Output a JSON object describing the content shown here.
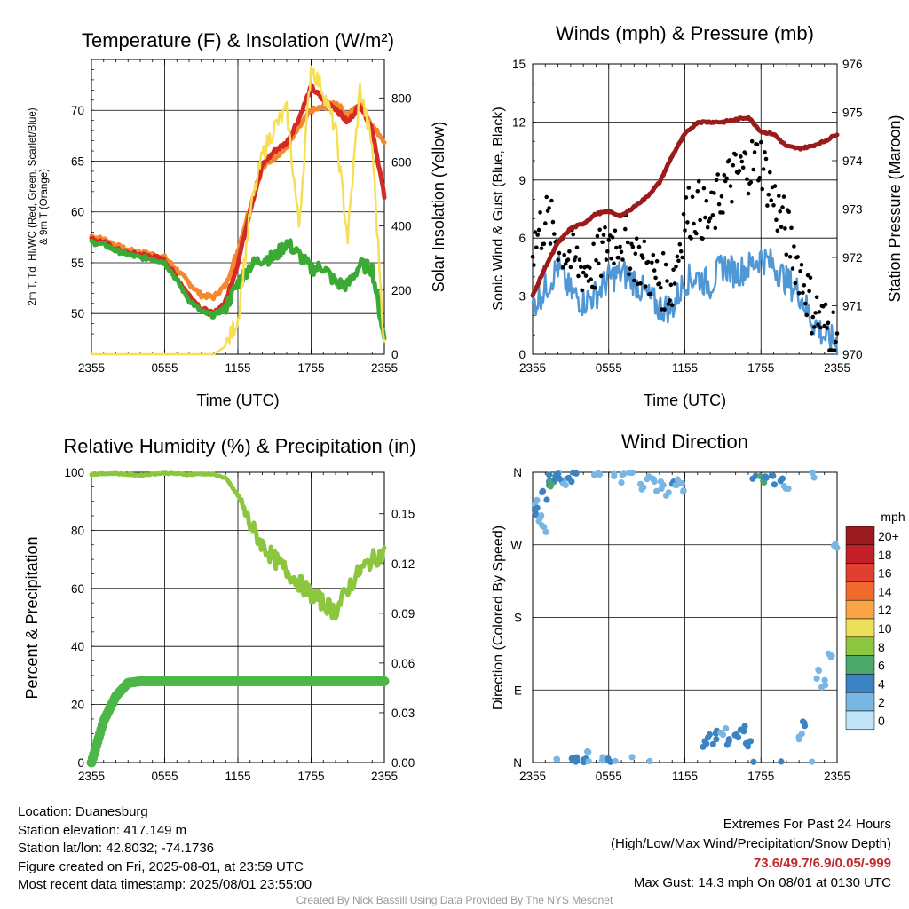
{
  "station": {
    "location": "Location: Duanesburg",
    "elevation": "Station elevation: 417.149 m",
    "latlon": "Station lat/lon: 42.8032; -74.1736",
    "created": "Figure created on Fri, 2025-08-01, at 23:59 UTC",
    "recent": "Most recent data timestamp: 2025/08/01 23:55:00"
  },
  "extremes": {
    "title": "Extremes For Past 24 Hours",
    "subtitle": "(High/Low/Max Wind/Precipitation/Snow Depth)",
    "values": "73.6/49.7/6.9/0.05/-999",
    "gust": "Max Gust: 14.3 mph On 08/01 at 0130 UTC"
  },
  "credit": "Created By Nick Bassill Using Data Provided By The NYS Mesonet",
  "colors": {
    "temp": "#d42a26",
    "dewpoint": "#3aaa35",
    "heatindex": "#2a7bc1",
    "temp9m": "#f7872e",
    "insolation": "#f6df55",
    "wind": "#4f97d5",
    "gust": "#000000",
    "pressure": "#9b1a1a",
    "rh": "#8cc63f",
    "precip": "#4cb748"
  },
  "chart_data": [
    {
      "type": "line",
      "title": "Temperature (F) & Insolation (W/m²)",
      "xlabel": "Time (UTC)",
      "ylabel": "2m T, Td, HI/WC (Red, Green, Scarlet/Blue) & 9m T (Orange)",
      "ylabel_line1": "2m T, Td, HI/WC (Red, Green, Scarlet/Blue)",
      "ylabel_line2": "& 9m T (Orange)",
      "y2label": "Solar Insolation (Yellow)",
      "xticks": [
        "2355",
        "0555",
        "1155",
        "1755",
        "2355"
      ],
      "x_hours": [
        0,
        1,
        2,
        3,
        4,
        5,
        6,
        7,
        8,
        9,
        10,
        11,
        12,
        13,
        14,
        15,
        16,
        17,
        18,
        19,
        20,
        21,
        22,
        23,
        24
      ],
      "ylim": [
        46,
        75
      ],
      "yticks": [
        50,
        55,
        60,
        65,
        70
      ],
      "y2lim": [
        0,
        920
      ],
      "y2ticks": [
        0,
        200,
        400,
        600,
        800
      ],
      "series": [
        {
          "name": "2m T",
          "axis": "left",
          "values": [
            57.3,
            57.0,
            56.3,
            55.9,
            55.8,
            55.6,
            55.2,
            53.5,
            51.8,
            50.5,
            49.9,
            51.2,
            55.0,
            60.2,
            64.6,
            66.0,
            66.8,
            69.2,
            72.3,
            71.0,
            70.2,
            68.8,
            70.6,
            68.2,
            61.5
          ]
        },
        {
          "name": "9m T",
          "axis": "left",
          "values": [
            57.6,
            57.3,
            56.7,
            56.2,
            56.0,
            55.8,
            55.5,
            54.3,
            53.0,
            51.8,
            51.6,
            52.8,
            56.2,
            60.5,
            64.3,
            65.4,
            66.3,
            68.3,
            70.0,
            70.3,
            70.8,
            69.5,
            70.6,
            68.5,
            67.0
          ]
        },
        {
          "name": "Td",
          "axis": "left",
          "values": [
            57.0,
            56.8,
            56.2,
            55.8,
            55.5,
            55.4,
            55.0,
            53.3,
            51.3,
            50.2,
            49.8,
            50.6,
            53.0,
            54.7,
            55.4,
            55.5,
            57.0,
            55.8,
            54.4,
            54.6,
            53.0,
            52.8,
            54.8,
            54.4,
            47.5
          ]
        },
        {
          "name": "Solar Insolation",
          "axis": "right",
          "values": [
            0,
            0,
            0,
            0,
            0,
            0,
            0,
            0,
            0,
            0,
            0,
            25,
            110,
            440,
            620,
            710,
            760,
            400,
            900,
            820,
            700,
            360,
            830,
            650,
            20
          ]
        }
      ]
    },
    {
      "type": "line",
      "title": "Winds (mph) & Pressure (mb)",
      "xlabel": "Time (UTC)",
      "ylabel": "Sonic Wind & Gust (Blue, Black)",
      "y2label": "Station Pressure (Maroon)",
      "xticks": [
        "2355",
        "0555",
        "1155",
        "1755",
        "2355"
      ],
      "x_hours": [
        0,
        1,
        2,
        3,
        4,
        5,
        6,
        7,
        8,
        9,
        10,
        11,
        12,
        13,
        14,
        15,
        16,
        17,
        18,
        19,
        20,
        21,
        22,
        23,
        24
      ],
      "ylim": [
        0,
        15
      ],
      "yticks": [
        0,
        3,
        6,
        9,
        12,
        15
      ],
      "y2lim": [
        970,
        976
      ],
      "y2ticks": [
        970,
        971,
        972,
        973,
        974,
        975,
        976
      ],
      "series": [
        {
          "name": "Sonic Wind",
          "axis": "left",
          "values": [
            2.5,
            3.4,
            4.5,
            3.2,
            2.7,
            3.1,
            3.9,
            4.2,
            3.8,
            3.0,
            2.4,
            2.4,
            3.8,
            4.0,
            3.6,
            4.6,
            4.2,
            4.5,
            5.0,
            4.6,
            3.8,
            3.2,
            1.8,
            0.9,
            0.6
          ]
        },
        {
          "name": "Gust",
          "axis": "left",
          "values": [
            5.5,
            7.0,
            6.0,
            5.0,
            4.4,
            4.6,
            5.8,
            6.1,
            5.2,
            4.4,
            3.8,
            3.6,
            7.2,
            7.6,
            6.8,
            8.6,
            9.2,
            9.8,
            10.1,
            8.0,
            6.4,
            4.5,
            2.5,
            1.5,
            1.0
          ]
        },
        {
          "name": "Station Pressure",
          "axis": "right",
          "values": [
            971.2,
            971.8,
            972.3,
            972.6,
            972.7,
            972.9,
            972.95,
            972.85,
            973.05,
            973.25,
            973.55,
            974.1,
            974.55,
            974.8,
            974.8,
            974.8,
            974.85,
            974.9,
            974.6,
            974.55,
            974.3,
            974.25,
            974.3,
            974.4,
            974.55
          ]
        }
      ]
    },
    {
      "type": "line",
      "title": "Relative Humidity (%) & Precipitation (in)",
      "ylabel": "Percent & Precipitation",
      "xticks": [
        "2355",
        "0555",
        "1155",
        "1755",
        "2355"
      ],
      "x_hours": [
        0,
        1,
        2,
        3,
        4,
        5,
        6,
        7,
        8,
        9,
        10,
        11,
        12,
        13,
        14,
        15,
        16,
        17,
        18,
        19,
        20,
        21,
        22,
        23,
        24
      ],
      "ylim": [
        0,
        100
      ],
      "yticks": [
        0,
        20,
        40,
        60,
        80,
        100
      ],
      "y2lim": [
        0,
        0.175
      ],
      "y2ticks": [
        0.0,
        0.03,
        0.06,
        0.09,
        0.12,
        0.15
      ],
      "series": [
        {
          "name": "Relative Humidity",
          "axis": "left",
          "values": [
            99.3,
            99.5,
            99.6,
            99.2,
            99.0,
            99.4,
            99.7,
            99.5,
            99.2,
            99.5,
            99.3,
            98.0,
            92.0,
            82.0,
            75.0,
            70.0,
            66.0,
            62.0,
            58.0,
            55.0,
            52.0,
            60.0,
            66.0,
            70.0,
            72.0
          ]
        },
        {
          "name": "Precipitation",
          "axis": "right",
          "values": [
            0.0,
            0.025,
            0.04,
            0.048,
            0.049,
            0.049,
            0.049,
            0.049,
            0.049,
            0.049,
            0.049,
            0.049,
            0.049,
            0.049,
            0.049,
            0.049,
            0.049,
            0.049,
            0.049,
            0.049,
            0.049,
            0.049,
            0.049,
            0.049,
            0.049
          ]
        }
      ]
    },
    {
      "type": "scatter",
      "title": "Wind Direction",
      "ylabel": "Direction (Colored By Speed)",
      "xticks": [
        "2355",
        "0555",
        "1155",
        "1755",
        "2355"
      ],
      "yticks": [
        "N",
        "E",
        "S",
        "W",
        "N"
      ],
      "ylim": [
        0,
        360
      ],
      "legend_title": "mph",
      "legend_position": "right",
      "legend_labels": [
        "20+",
        "18",
        "16",
        "14",
        "12",
        "10",
        "8",
        "6",
        "4",
        "2",
        "0"
      ],
      "legend_colors": [
        "#9b1c1f",
        "#c4202a",
        "#e0402f",
        "#f26b2e",
        "#f9a547",
        "#ece05b",
        "#8dc63f",
        "#4aa86b",
        "#3b84c4",
        "#7ab6e3",
        "#bfe3f7"
      ],
      "points": [
        [
          0.3,
          320,
          2
        ],
        [
          0.4,
          310,
          3
        ],
        [
          0.6,
          300,
          2
        ],
        [
          0.9,
          290,
          2
        ],
        [
          1.0,
          330,
          3
        ],
        [
          1.3,
          350,
          3
        ],
        [
          1.5,
          345,
          5
        ],
        [
          1.6,
          355,
          4
        ],
        [
          2.0,
          358,
          2
        ],
        [
          2.2,
          352,
          3
        ],
        [
          2.6,
          345,
          2
        ],
        [
          3.0,
          355,
          3
        ],
        [
          3.3,
          2,
          3
        ],
        [
          3.6,
          5,
          4
        ],
        [
          4.0,
          2,
          3
        ],
        [
          4.5,
          8,
          2
        ],
        [
          5.0,
          356,
          2
        ],
        [
          5.5,
          0,
          2
        ],
        [
          6.0,
          5,
          3
        ],
        [
          6.6,
          356,
          2
        ],
        [
          7.2,
          352,
          2
        ],
        [
          7.8,
          0,
          2
        ],
        [
          8.5,
          345,
          2
        ],
        [
          9.0,
          355,
          2
        ],
        [
          9.5,
          350,
          2
        ],
        [
          10.0,
          342,
          2
        ],
        [
          10.5,
          338,
          2
        ],
        [
          11.0,
          345,
          3
        ],
        [
          11.5,
          350,
          2
        ],
        [
          12.0,
          340,
          2
        ],
        [
          13.5,
          20,
          3
        ],
        [
          14.0,
          28,
          3
        ],
        [
          14.5,
          35,
          3
        ],
        [
          15.0,
          40,
          2
        ],
        [
          15.5,
          25,
          3
        ],
        [
          16.0,
          30,
          3
        ],
        [
          16.5,
          45,
          3
        ],
        [
          17.0,
          20,
          3
        ],
        [
          17.5,
          355,
          3
        ],
        [
          18.0,
          352,
          5
        ],
        [
          18.5,
          358,
          4
        ],
        [
          19.0,
          350,
          3
        ],
        [
          19.5,
          355,
          4
        ],
        [
          20.0,
          340,
          2
        ],
        [
          21.0,
          30,
          2
        ],
        [
          21.5,
          45,
          3
        ],
        [
          22.0,
          358,
          1
        ],
        [
          22.5,
          110,
          1
        ],
        [
          23.0,
          100,
          1
        ],
        [
          23.5,
          130,
          1
        ],
        [
          24.0,
          270,
          1
        ]
      ]
    }
  ]
}
